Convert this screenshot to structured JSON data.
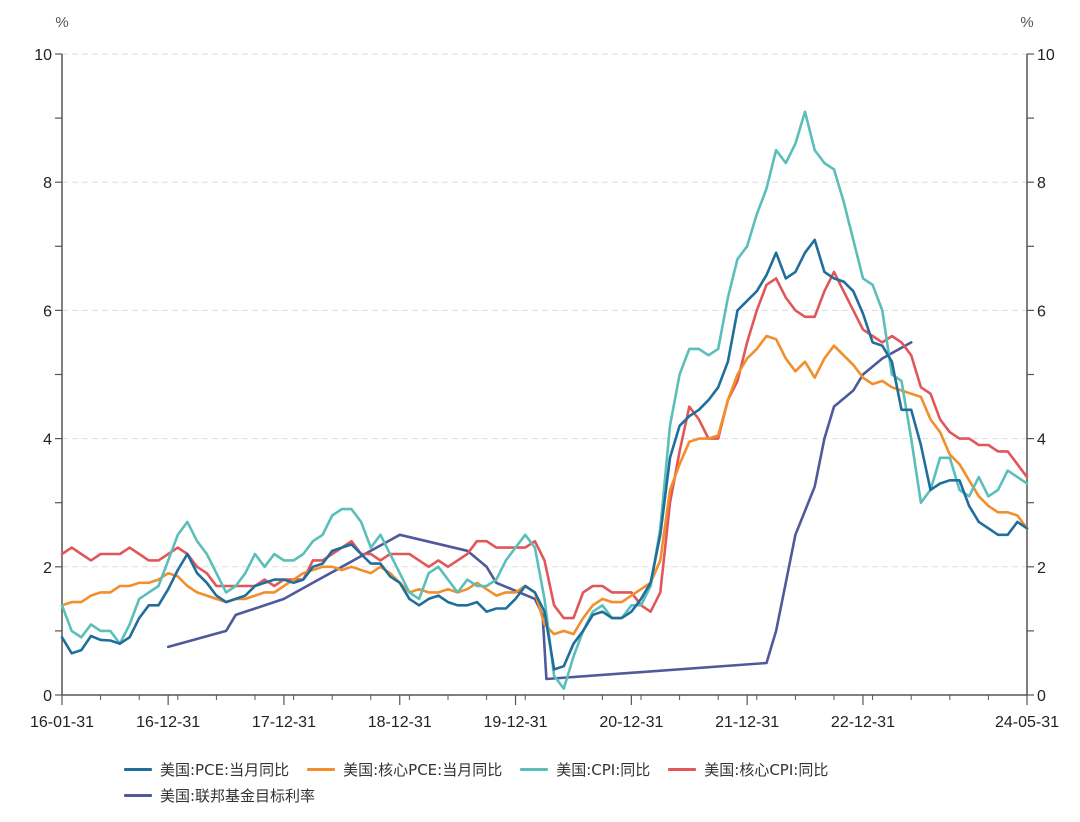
{
  "chart_data": {
    "type": "line",
    "title": "",
    "xlabel": "",
    "ylabel": "%",
    "ylabel_right": "%",
    "ylim": [
      0,
      10
    ],
    "y_ticks": [
      0,
      2,
      4,
      6,
      8,
      10
    ],
    "y_minor_step": 1,
    "grid": "horizontal dashed at major ticks",
    "x_tick_labels": [
      "16-01-31",
      "16-12-31",
      "17-12-31",
      "18-12-31",
      "19-12-31",
      "20-12-31",
      "21-12-31",
      "22-12-31",
      "24-05-31"
    ],
    "x_tick_month_index": [
      0,
      11,
      23,
      35,
      47,
      59,
      71,
      83,
      100
    ],
    "x_start": "2016-01",
    "x_end": "2024-05",
    "x_frequency": "monthly",
    "legend_position": "bottom",
    "series": [
      {
        "name": "美国:PCE:当月同比",
        "color": "#1f6e9c",
        "start_index": 0,
        "values": [
          0.9,
          0.65,
          0.7,
          0.92,
          0.86,
          0.85,
          0.8,
          0.9,
          1.2,
          1.4,
          1.4,
          1.65,
          1.95,
          2.2,
          1.9,
          1.75,
          1.55,
          1.45,
          1.5,
          1.55,
          1.7,
          1.75,
          1.8,
          1.8,
          1.75,
          1.8,
          2.0,
          2.05,
          2.25,
          2.3,
          2.35,
          2.2,
          2.05,
          2.05,
          1.85,
          1.75,
          1.5,
          1.4,
          1.5,
          1.55,
          1.45,
          1.4,
          1.4,
          1.45,
          1.3,
          1.35,
          1.35,
          1.5,
          1.7,
          1.6,
          1.3,
          0.4,
          0.45,
          0.8,
          1.0,
          1.25,
          1.3,
          1.2,
          1.2,
          1.3,
          1.5,
          1.75,
          2.5,
          3.7,
          4.2,
          4.35,
          4.45,
          4.6,
          4.8,
          5.2,
          6.0,
          6.15,
          6.3,
          6.55,
          6.9,
          6.5,
          6.6,
          6.9,
          7.1,
          6.6,
          6.5,
          6.45,
          6.3,
          5.95,
          5.5,
          5.45,
          5.2,
          4.45,
          4.45,
          3.9,
          3.2,
          3.3,
          3.35,
          3.35,
          2.95,
          2.7,
          2.6,
          2.5,
          2.5,
          2.7,
          2.6
        ]
      },
      {
        "name": "美国:核心PCE:当月同比",
        "color": "#f28e2b",
        "start_index": 0,
        "values": [
          1.4,
          1.45,
          1.45,
          1.55,
          1.6,
          1.6,
          1.7,
          1.7,
          1.75,
          1.75,
          1.8,
          1.9,
          1.85,
          1.7,
          1.6,
          1.55,
          1.5,
          1.45,
          1.5,
          1.5,
          1.55,
          1.6,
          1.6,
          1.7,
          1.8,
          1.9,
          1.95,
          2.0,
          2.0,
          1.95,
          2.0,
          1.95,
          1.9,
          2.0,
          1.9,
          1.75,
          1.6,
          1.65,
          1.6,
          1.6,
          1.65,
          1.6,
          1.65,
          1.75,
          1.65,
          1.55,
          1.6,
          1.6,
          1.7,
          1.6,
          1.1,
          0.95,
          1.0,
          0.95,
          1.2,
          1.4,
          1.5,
          1.45,
          1.45,
          1.55,
          1.65,
          1.75,
          2.1,
          3.2,
          3.6,
          3.95,
          4.0,
          4.0,
          4.05,
          4.6,
          5.0,
          5.25,
          5.4,
          5.6,
          5.55,
          5.25,
          5.05,
          5.2,
          4.95,
          5.25,
          5.45,
          5.3,
          5.15,
          4.95,
          4.85,
          4.9,
          4.8,
          4.75,
          4.7,
          4.65,
          4.3,
          4.1,
          3.75,
          3.6,
          3.35,
          3.1,
          2.95,
          2.85,
          2.85,
          2.8,
          2.6
        ]
      },
      {
        "name": "美国:CPI:同比",
        "color": "#5bbfb9",
        "start_index": 0,
        "values": [
          1.4,
          1.0,
          0.9,
          1.1,
          1.0,
          1.0,
          0.8,
          1.1,
          1.5,
          1.6,
          1.7,
          2.1,
          2.5,
          2.7,
          2.4,
          2.2,
          1.9,
          1.6,
          1.7,
          1.9,
          2.2,
          2.0,
          2.2,
          2.1,
          2.1,
          2.2,
          2.4,
          2.5,
          2.8,
          2.9,
          2.9,
          2.7,
          2.3,
          2.5,
          2.2,
          1.9,
          1.6,
          1.5,
          1.9,
          2.0,
          1.8,
          1.6,
          1.8,
          1.7,
          1.7,
          1.8,
          2.1,
          2.3,
          2.5,
          2.3,
          1.5,
          0.3,
          0.1,
          0.6,
          1.0,
          1.3,
          1.4,
          1.2,
          1.2,
          1.4,
          1.4,
          1.7,
          2.6,
          4.2,
          5.0,
          5.4,
          5.4,
          5.3,
          5.4,
          6.2,
          6.8,
          7.0,
          7.5,
          7.9,
          8.5,
          8.3,
          8.6,
          9.1,
          8.5,
          8.3,
          8.2,
          7.7,
          7.1,
          6.5,
          6.4,
          6.0,
          5.0,
          4.9,
          4.0,
          3.0,
          3.2,
          3.7,
          3.7,
          3.2,
          3.1,
          3.4,
          3.1,
          3.2,
          3.5,
          3.4,
          3.3
        ]
      },
      {
        "name": "美国:核心CPI:同比",
        "color": "#e15759",
        "start_index": 0,
        "values": [
          2.2,
          2.3,
          2.2,
          2.1,
          2.2,
          2.2,
          2.2,
          2.3,
          2.2,
          2.1,
          2.1,
          2.2,
          2.3,
          2.2,
          2.0,
          1.9,
          1.7,
          1.7,
          1.7,
          1.7,
          1.7,
          1.8,
          1.7,
          1.8,
          1.8,
          1.8,
          2.1,
          2.1,
          2.2,
          2.3,
          2.4,
          2.2,
          2.2,
          2.1,
          2.2,
          2.2,
          2.2,
          2.1,
          2.0,
          2.1,
          2.0,
          2.1,
          2.2,
          2.4,
          2.4,
          2.3,
          2.3,
          2.3,
          2.3,
          2.4,
          2.1,
          1.4,
          1.2,
          1.2,
          1.6,
          1.7,
          1.7,
          1.6,
          1.6,
          1.6,
          1.4,
          1.3,
          1.6,
          3.0,
          3.8,
          4.5,
          4.3,
          4.0,
          4.0,
          4.6,
          4.9,
          5.5,
          6.0,
          6.4,
          6.5,
          6.2,
          6.0,
          5.9,
          5.9,
          6.3,
          6.6,
          6.3,
          6.0,
          5.7,
          5.6,
          5.5,
          5.6,
          5.5,
          5.3,
          4.8,
          4.7,
          4.3,
          4.1,
          4.0,
          4.0,
          3.9,
          3.9,
          3.8,
          3.8,
          3.6,
          3.4
        ]
      },
      {
        "name": "美国:联邦基金目标利率",
        "color": "#4e5a9a",
        "points": [
          {
            "i": 11,
            "v": 0.75
          },
          {
            "i": 17,
            "v": 1.0
          },
          {
            "i": 18,
            "v": 1.25
          },
          {
            "i": 23,
            "v": 1.5
          },
          {
            "i": 26,
            "v": 1.75
          },
          {
            "i": 29,
            "v": 2.0
          },
          {
            "i": 32,
            "v": 2.25
          },
          {
            "i": 35,
            "v": 2.5
          },
          {
            "i": 42,
            "v": 2.25
          },
          {
            "i": 44,
            "v": 2.0
          },
          {
            "i": 45,
            "v": 1.75
          },
          {
            "i": 49,
            "v": 1.5
          },
          {
            "i": 49.8,
            "v": 1.25
          },
          {
            "i": 50.2,
            "v": 0.25
          },
          {
            "i": 73,
            "v": 0.5
          },
          {
            "i": 74,
            "v": 1.0
          },
          {
            "i": 75,
            "v": 1.75
          },
          {
            "i": 76,
            "v": 2.5
          },
          {
            "i": 78,
            "v": 3.25
          },
          {
            "i": 79,
            "v": 4.0
          },
          {
            "i": 80,
            "v": 4.5
          },
          {
            "i": 82,
            "v": 4.75
          },
          {
            "i": 83,
            "v": 5.0
          },
          {
            "i": 85,
            "v": 5.25
          },
          {
            "i": 88,
            "v": 5.5
          }
        ]
      }
    ]
  },
  "axis": {
    "left_unit": "%",
    "right_unit": "%"
  },
  "legend": {
    "items": [
      {
        "label": "美国:PCE:当月同比",
        "color": "#1f6e9c"
      },
      {
        "label": "美国:核心PCE:当月同比",
        "color": "#f28e2b"
      },
      {
        "label": "美国:CPI:同比",
        "color": "#5bbfb9"
      },
      {
        "label": "美国:核心CPI:同比",
        "color": "#e15759"
      },
      {
        "label": "美国:联邦基金目标利率",
        "color": "#4e5a9a"
      }
    ]
  }
}
